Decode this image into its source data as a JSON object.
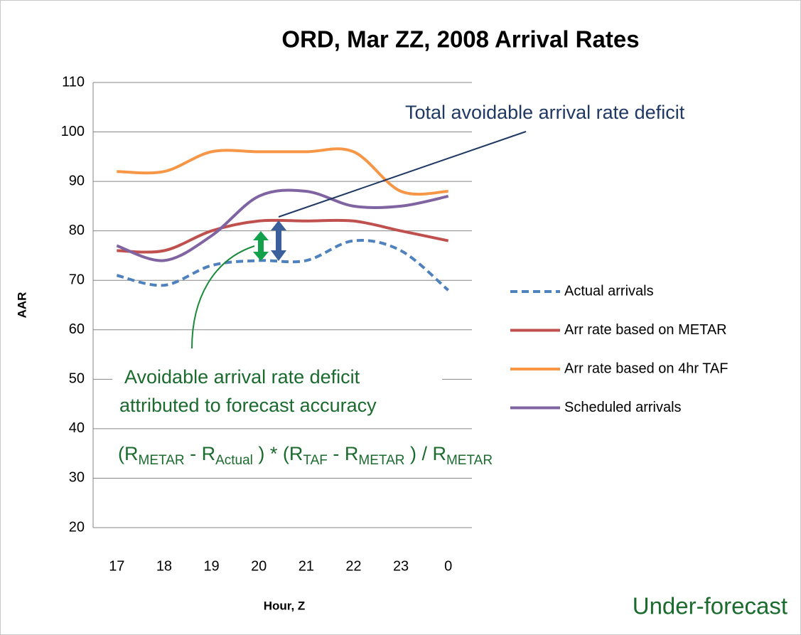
{
  "chart_data": {
    "type": "line",
    "title": "ORD, Mar ZZ, 2008 Arrival Rates",
    "x_label": "Hour, Z",
    "y_label": "AAR",
    "categories": [
      "17",
      "18",
      "19",
      "20",
      "21",
      "22",
      "23",
      "0"
    ],
    "ylim": [
      20,
      110
    ],
    "yticks": [
      20,
      30,
      40,
      50,
      60,
      70,
      80,
      90,
      100,
      110
    ],
    "grid": true,
    "legend": "right",
    "series": [
      {
        "name": "Actual arrivals",
        "color": "#4f81bd",
        "dashed": true,
        "values": [
          71,
          69,
          73,
          74,
          74,
          78,
          76,
          68
        ]
      },
      {
        "name": "Arr rate based on METAR",
        "color": "#c0504d",
        "values": [
          76,
          76,
          80,
          82,
          82,
          82,
          80,
          78
        ]
      },
      {
        "name": "Arr rate based on 4hr TAF",
        "color": "#f79646",
        "values": [
          92,
          92,
          96,
          96,
          96,
          96,
          88,
          88
        ]
      },
      {
        "name": "Scheduled arrivals",
        "color": "#8064a2",
        "values": [
          77,
          74,
          79,
          87,
          88,
          85,
          85,
          87
        ]
      }
    ],
    "annotations": {
      "total": "Total avoidable arrival rate deficit",
      "forecast_line1": "Avoidable arrival rate deficit",
      "forecast_line2": "attributed to forecast accuracy",
      "formula": [
        "(R",
        "METAR",
        " - R",
        "Actual",
        " ) * (R",
        "TAF",
        " - R",
        "METAR",
        " ) / R",
        "METAR"
      ],
      "corner": "Under-forecast"
    }
  }
}
